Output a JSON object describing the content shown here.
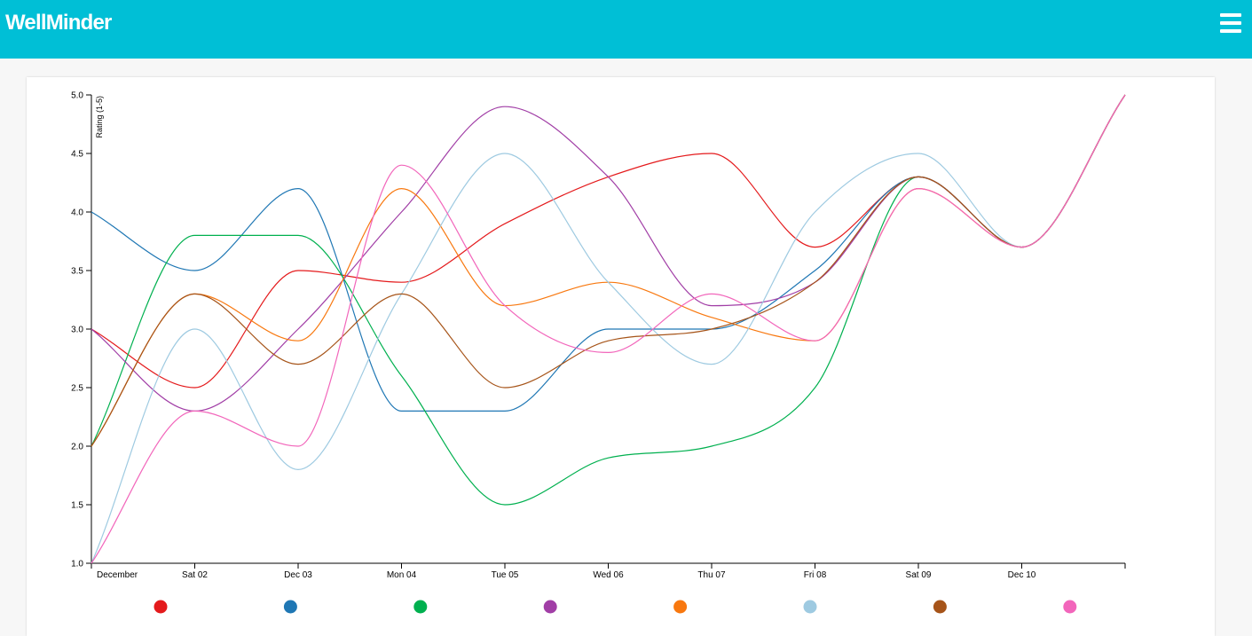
{
  "app": {
    "title": "WellMinder",
    "menu_icon": "hamburger-menu-icon"
  },
  "chart_data": {
    "type": "line",
    "title": "",
    "ylabel": "Rating (1-5)",
    "xlabel": "",
    "ylim": [
      1,
      5
    ],
    "yticks": [
      "1.0",
      "1.5",
      "2.0",
      "2.5",
      "3.0",
      "3.5",
      "4.0",
      "4.5",
      "5.0"
    ],
    "xticks": [
      "December",
      "Sat 02",
      "Dec 03",
      "Mon 04",
      "Tue 05",
      "Wed 06",
      "Thu 07",
      "Fri 08",
      "Sat 09",
      "Dec 10"
    ],
    "x_domain": [
      "2017-12-01T00:00",
      "2017-12-11T00:00"
    ],
    "x": [
      "2017-12-01T00:00",
      "2017-12-02T00:00",
      "2017-12-03T00:00",
      "2017-12-04T00:00",
      "2017-12-05T00:00",
      "2017-12-06T00:00",
      "2017-12-07T00:00",
      "2017-12-08T00:00",
      "2017-12-09T00:00",
      "2017-12-10T00:00",
      "2017-12-11T00:00"
    ],
    "grid": false,
    "legend_position": "bottom",
    "series": [
      {
        "color": "#e41a1c",
        "values": [
          3.0,
          2.5,
          3.5,
          3.4,
          3.9,
          4.3,
          4.5,
          3.7,
          4.3,
          3.7,
          5.0
        ]
      },
      {
        "color": "#1f77b4",
        "values": [
          4.0,
          3.5,
          4.2,
          2.3,
          2.3,
          3.0,
          3.0,
          3.5,
          4.3,
          3.7,
          5.0
        ]
      },
      {
        "color": "#00b04f",
        "values": [
          2.0,
          3.8,
          3.8,
          2.6,
          1.5,
          1.9,
          2.0,
          2.5,
          4.3,
          3.7,
          5.0
        ]
      },
      {
        "color": "#a13ea6",
        "values": [
          3.0,
          2.3,
          3.0,
          4.0,
          4.9,
          4.3,
          3.2,
          3.4,
          4.3,
          3.7,
          5.0
        ]
      },
      {
        "color": "#f8780f",
        "values": [
          2.0,
          3.3,
          2.9,
          4.2,
          3.2,
          3.4,
          3.1,
          2.9,
          4.2,
          3.7,
          5.0
        ]
      },
      {
        "color": "#9ecae1",
        "values": [
          1.0,
          3.0,
          1.8,
          3.3,
          4.5,
          3.4,
          2.7,
          4.0,
          4.5,
          3.7,
          5.0
        ]
      },
      {
        "color": "#a65419",
        "values": [
          2.0,
          3.3,
          2.7,
          3.3,
          2.5,
          2.9,
          3.0,
          3.4,
          4.3,
          3.7,
          5.0
        ]
      },
      {
        "color": "#f266bb",
        "values": [
          1.0,
          2.3,
          2.0,
          4.4,
          3.2,
          2.8,
          3.3,
          2.9,
          4.2,
          3.7,
          5.0
        ]
      }
    ]
  }
}
